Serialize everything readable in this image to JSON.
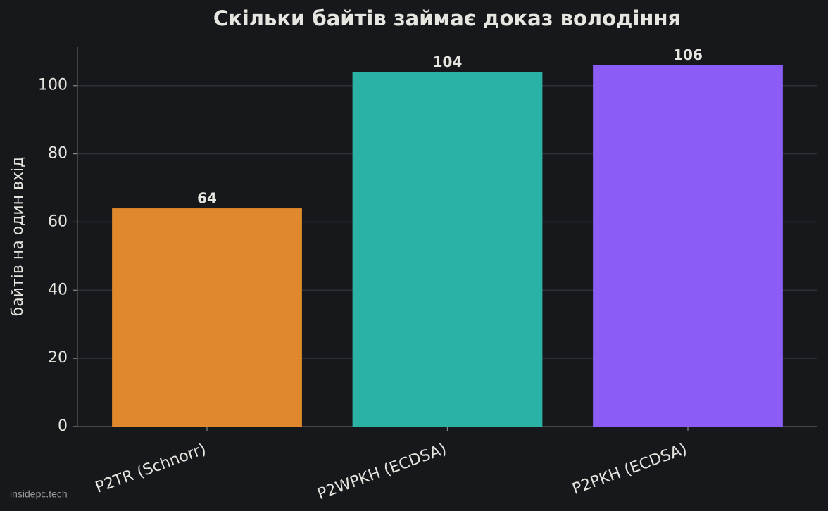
{
  "chart_data": {
    "type": "bar",
    "title": "Скільки байтів займає доказ володіння",
    "y_label": "байтів на один вхід",
    "categories": [
      "P2TR (Schnorr)",
      "P2WPKH (ECDSA)",
      "P2PKH (ECDSA)"
    ],
    "values": [
      64,
      104,
      106
    ],
    "colors": [
      "#e0892c",
      "#2ab3a4",
      "#8b5cf6"
    ],
    "ylim": [
      0,
      111.3
    ],
    "yticks": [
      0,
      20,
      40,
      60,
      80,
      100
    ],
    "grid": true,
    "watermark": "insidepc.tech"
  }
}
